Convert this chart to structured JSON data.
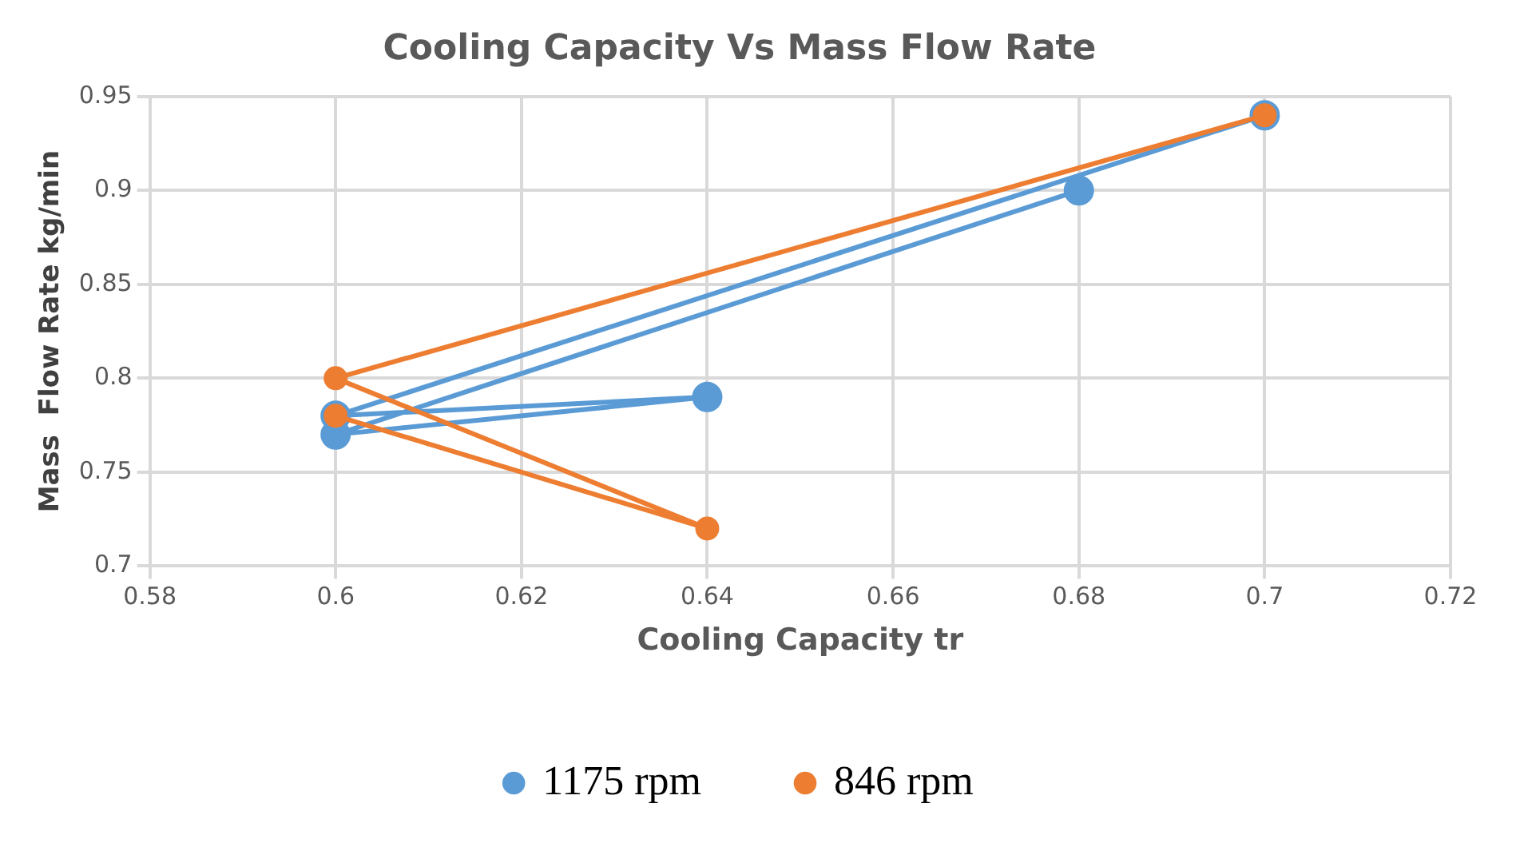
{
  "chart_data": {
    "type": "line",
    "title": "Cooling Capacity Vs Mass Flow Rate",
    "xlabel": "Cooling Capacity tr",
    "ylabel": "Mass  Flow Rate kg/min",
    "series": [
      {
        "name": "1175 rpm",
        "color": "#5b9bd5",
        "x": [
          0.68,
          0.6,
          0.64,
          0.6,
          0.7
        ],
        "values": [
          0.9,
          0.77,
          0.79,
          0.78,
          0.94
        ]
      },
      {
        "name": "846 rpm",
        "color": "#ed7d31",
        "x": [
          0.7,
          0.6,
          0.64,
          0.6
        ],
        "values": [
          0.94,
          0.8,
          0.72,
          0.78
        ]
      }
    ],
    "xlim": [
      0.58,
      0.72
    ],
    "xticks": [
      0.58,
      0.6,
      0.62,
      0.64,
      0.66,
      0.68,
      0.7,
      0.72
    ],
    "ylim": [
      0.7,
      0.95
    ],
    "yticks": [
      0.7,
      0.75,
      0.8,
      0.85,
      0.9,
      0.95
    ],
    "grid": true,
    "legend": "bottom",
    "marker": "circle",
    "line_style": "solid"
  }
}
